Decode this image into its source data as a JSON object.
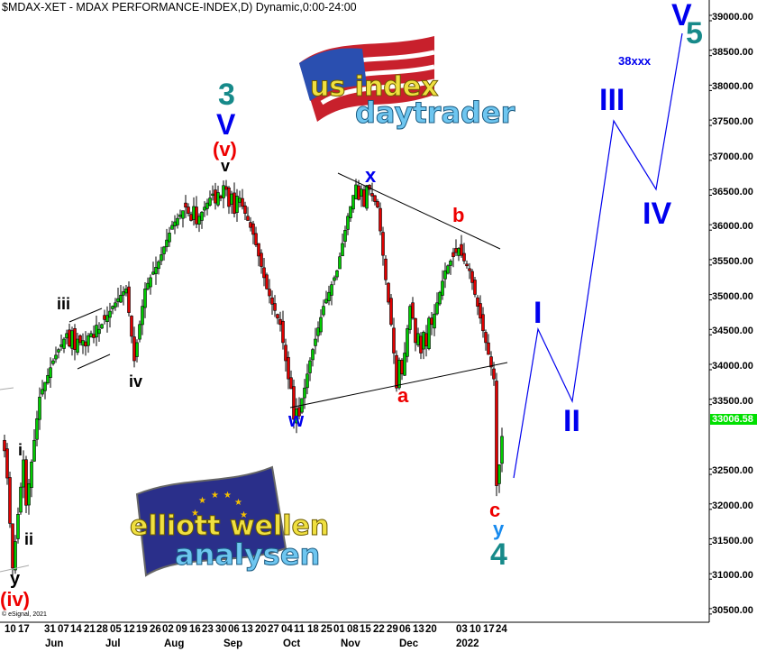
{
  "title": "$MDAX-XET - MDAX PERFORMANCE-INDEX,D) Dynamic,0:00-24:00",
  "copyright": "© eSignal, 2021",
  "logos": {
    "us_index": {
      "line1": "us index",
      "line2": "daytrader"
    },
    "elliott": {
      "line1": "elliott wellen",
      "line2": "analysen"
    }
  },
  "colors": {
    "up": "#00cc00",
    "down": "#e00000",
    "wave_teal": "#178a8a",
    "wave_blue": "#0000ee",
    "wave_red": "#ee0000",
    "last_price_bg": "#00e000"
  },
  "chart_data": {
    "type": "candlestick",
    "ylim": [
      30500,
      39000
    ],
    "y_ticks": [
      "39000.00",
      "38500.00",
      "38000.00",
      "37500.00",
      "37000.00",
      "36500.00",
      "36000.00",
      "35500.00",
      "35000.00",
      "34500.00",
      "34000.00",
      "33500.00",
      "32500.00",
      "32000.00",
      "31500.00",
      "31000.00",
      "30500.00"
    ],
    "y_tick_values": [
      39000,
      38500,
      38000,
      37500,
      37000,
      36500,
      36000,
      35500,
      35000,
      34500,
      34000,
      33500,
      32500,
      32000,
      31500,
      31000,
      30500
    ],
    "last_price": "33006.58",
    "x_day_ticks": [
      "10",
      "17",
      "31",
      "07",
      "14",
      "21",
      "28",
      "05",
      "12",
      "19",
      "26",
      "02",
      "09",
      "16",
      "23",
      "30",
      "06",
      "13",
      "20",
      "27",
      "04",
      "11",
      "18",
      "25",
      "01",
      "08",
      "15",
      "22",
      "29",
      "06",
      "13",
      "20",
      "03",
      "10",
      "17",
      "24"
    ],
    "x_month_ticks": [
      "Jun",
      "Jul",
      "Aug",
      "Sep",
      "Oct",
      "Nov",
      "Dec",
      "2022"
    ],
    "closes": [
      32800,
      32410,
      31760,
      31120,
      31500,
      31890,
      32280,
      32670,
      32020,
      32330,
      32640,
      32950,
      33260,
      33570,
      33680,
      33780,
      33880,
      33990,
      34090,
      34170,
      34250,
      34320,
      34400,
      34480,
      34300,
      34520,
      34250,
      34400,
      34350,
      34380,
      34300,
      34450,
      34480,
      34420,
      34600,
      34540,
      34610,
      34680,
      34740,
      34800,
      34870,
      34920,
      34980,
      35030,
      35080,
      35120,
      34780,
      34440,
      34090,
      34350,
      34610,
      34870,
      35120,
      35200,
      35280,
      35360,
      35430,
      35510,
      35610,
      35720,
      35820,
      35920,
      36030,
      36080,
      36130,
      36180,
      36240,
      36290,
      36200,
      36100,
      36300,
      36050,
      36160,
      36220,
      36290,
      36350,
      36420,
      36480,
      36350,
      36500,
      36420,
      36600,
      36545,
      36300,
      36480,
      36200,
      36450,
      36420,
      36300,
      36200,
      36100,
      36000,
      35900,
      35750,
      35590,
      35440,
      35280,
      35120,
      35020,
      34900,
      34810,
      34700,
      34610,
      34350,
      34090,
      33830,
      33690,
      33250,
      33400,
      33300,
      33550,
      33700,
      33900,
      34090,
      34250,
      34400,
      34560,
      34710,
      34870,
      34970,
      35070,
      35180,
      35280,
      35380,
      35580,
      35770,
      35960,
      36160,
      36300,
      36460,
      36610,
      36400,
      36550,
      36300,
      36600,
      36545,
      36450,
      36370,
      36290,
      35950,
      35600,
      35250,
      34930,
      34610,
      34200,
      33700,
      34100,
      33900,
      34200,
      34550,
      34870,
      34700,
      34350,
      34480,
      34200,
      34500,
      34300,
      34700,
      34610,
      34760,
      34920,
      35070,
      35230,
      35380,
      35450,
      35520,
      35580,
      35640,
      35700,
      35600,
      35520,
      35450,
      35380,
      35210,
      35040,
      34870,
      34700,
      34520,
      34350,
      34180,
      34000,
      33830,
      32300,
      32600,
      33006.58
    ],
    "projection_text": "38xxx",
    "wave_labels": {
      "three": "3",
      "big_v": "V",
      "paren_v": "(v)",
      "small_v": "v",
      "iii": "iii",
      "iv": "iv",
      "i": "i",
      "ii": "ii",
      "y_black": "y",
      "paren_iv": "(iv)",
      "x": "x",
      "w": "w",
      "a": "a",
      "b": "b",
      "c": "c",
      "y_blue": "y",
      "four": "4",
      "I": "I",
      "II": "II",
      "III": "III",
      "IV": "IV",
      "V": "V",
      "five": "5"
    }
  }
}
